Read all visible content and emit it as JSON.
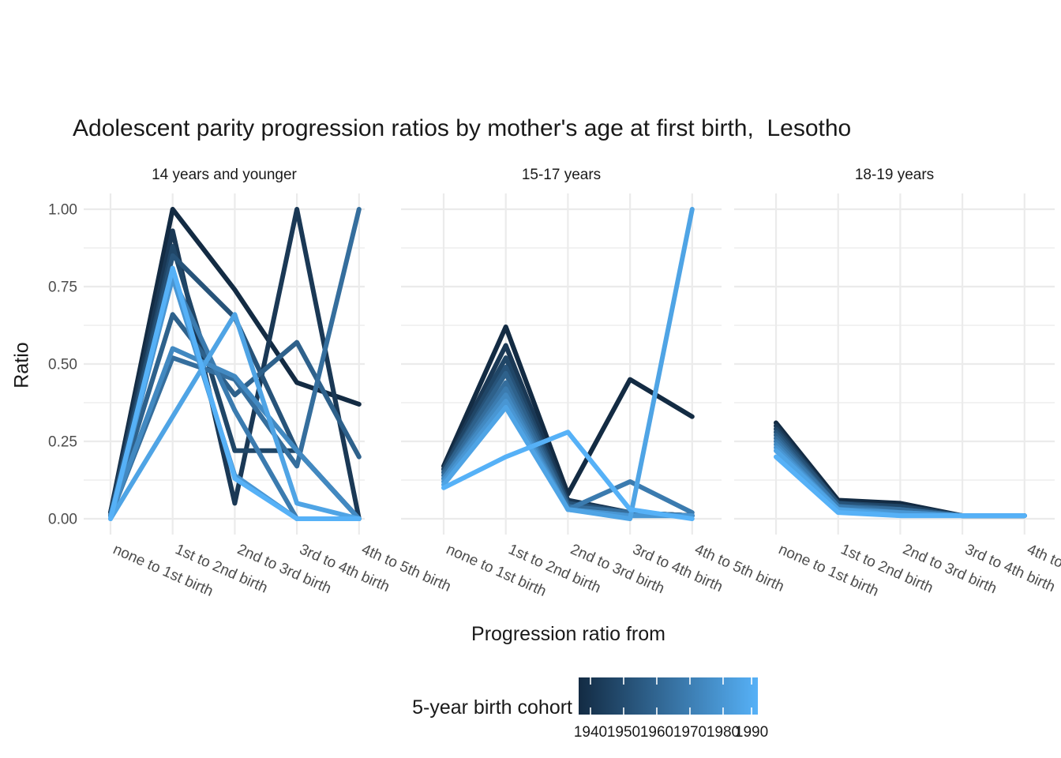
{
  "title": "Adolescent parity progression ratios by mother's age at first birth,  Lesotho",
  "y_axis": {
    "label": "Ratio",
    "ticks": [
      "1.00",
      "0.75",
      "0.50",
      "0.25",
      "0.00"
    ],
    "tick_values": [
      1.0,
      0.75,
      0.5,
      0.25,
      0.0
    ]
  },
  "x_axis": {
    "label": "Progression ratio from",
    "categories": [
      "none to 1st birth",
      "1st to 2nd birth",
      "2nd to 3rd birth",
      "3rd to 4th birth",
      "4th to 5th birth"
    ]
  },
  "legend": {
    "title": "5-year birth cohort",
    "ticks": [
      "1940",
      "1950",
      "1960",
      "1970",
      "1980",
      "1990"
    ],
    "gradient_low": "#132B43",
    "gradient_mid": "#356E9D",
    "gradient_high": "#56B1F7"
  },
  "chart_data": {
    "type": "line",
    "grid": true,
    "legend_position": "bottom",
    "ylim": [
      0,
      1
    ],
    "x": [
      "none to 1st birth",
      "1st to 2nd birth",
      "2nd to 3rd birth",
      "3rd to 4th birth",
      "4th to 5th birth"
    ],
    "facets": [
      {
        "label": "14 years and younger",
        "series": [
          {
            "name": "1940",
            "color": "#132B43",
            "values": [
              0.02,
              1.0,
              0.74,
              0.44,
              0.37
            ]
          },
          {
            "name": "1945",
            "color": "#1A3855",
            "values": [
              0.02,
              0.93,
              0.05,
              1.0,
              0.0
            ]
          },
          {
            "name": "1950",
            "color": "#204667",
            "values": [
              0.01,
              0.88,
              0.22,
              0.22,
              0.0
            ]
          },
          {
            "name": "1955",
            "color": "#275379",
            "values": [
              0.01,
              0.85,
              0.65,
              0.22,
              0.0
            ]
          },
          {
            "name": "1960",
            "color": "#2E618B",
            "values": [
              0.01,
              0.66,
              0.4,
              0.57,
              0.2
            ]
          },
          {
            "name": "1965",
            "color": "#356E9D",
            "values": [
              0.01,
              0.52,
              0.45,
              0.17,
              1.0
            ]
          },
          {
            "name": "1970",
            "color": "#3B7BAF",
            "values": [
              0.01,
              0.78,
              0.35,
              0.0,
              0.0
            ]
          },
          {
            "name": "1975",
            "color": "#4289C1",
            "values": [
              0.01,
              0.55,
              0.46,
              0.22,
              0.0
            ]
          },
          {
            "name": "1980",
            "color": "#4996D3",
            "values": [
              0.0,
              0.78,
              0.14,
              0.0,
              0.0
            ]
          },
          {
            "name": "1985",
            "color": "#4FA4E5",
            "values": [
              0.0,
              0.33,
              0.66,
              0.05,
              0.0
            ]
          },
          {
            "name": "1990",
            "color": "#56B1F7",
            "values": [
              0.0,
              0.81,
              0.13,
              0.0,
              0.0
            ]
          }
        ]
      },
      {
        "label": "15-17 years",
        "series": [
          {
            "name": "1940",
            "color": "#132B43",
            "values": [
              0.17,
              0.62,
              0.08,
              0.45,
              0.33
            ]
          },
          {
            "name": "1945",
            "color": "#1A3855",
            "values": [
              0.16,
              0.56,
              0.06,
              0.02,
              0.01
            ]
          },
          {
            "name": "1950",
            "color": "#204667",
            "values": [
              0.16,
              0.52,
              0.05,
              0.02,
              0.01
            ]
          },
          {
            "name": "1955",
            "color": "#275379",
            "values": [
              0.15,
              0.49,
              0.05,
              0.02,
              0.01
            ]
          },
          {
            "name": "1960",
            "color": "#2E618B",
            "values": [
              0.15,
              0.47,
              0.04,
              0.02,
              0.01
            ]
          },
          {
            "name": "1965",
            "color": "#356E9D",
            "values": [
              0.14,
              0.44,
              0.04,
              0.02,
              0.01
            ]
          },
          {
            "name": "1970",
            "color": "#3B7BAF",
            "values": [
              0.13,
              0.42,
              0.03,
              0.12,
              0.02
            ]
          },
          {
            "name": "1975",
            "color": "#4289C1",
            "values": [
              0.13,
              0.4,
              0.03,
              0.01,
              0.01
            ]
          },
          {
            "name": "1980",
            "color": "#4996D3",
            "values": [
              0.12,
              0.38,
              0.03,
              0.01,
              0.01
            ]
          },
          {
            "name": "1985",
            "color": "#4FA4E5",
            "values": [
              0.11,
              0.36,
              0.03,
              0.0,
              1.0
            ]
          },
          {
            "name": "1990",
            "color": "#56B1F7",
            "values": [
              0.1,
              0.2,
              0.28,
              0.03,
              0.0
            ]
          }
        ]
      },
      {
        "label": "18-19 years",
        "series": [
          {
            "name": "1940",
            "color": "#132B43",
            "values": [
              0.31,
              0.06,
              0.05,
              0.01,
              0.01
            ]
          },
          {
            "name": "1945",
            "color": "#1A3855",
            "values": [
              0.3,
              0.05,
              0.04,
              0.01,
              0.01
            ]
          },
          {
            "name": "1950",
            "color": "#204667",
            "values": [
              0.29,
              0.05,
              0.04,
              0.01,
              0.01
            ]
          },
          {
            "name": "1955",
            "color": "#275379",
            "values": [
              0.28,
              0.05,
              0.03,
              0.01,
              0.01
            ]
          },
          {
            "name": "1960",
            "color": "#2E618B",
            "values": [
              0.27,
              0.04,
              0.03,
              0.01,
              0.01
            ]
          },
          {
            "name": "1965",
            "color": "#356E9D",
            "values": [
              0.26,
              0.04,
              0.03,
              0.01,
              0.01
            ]
          },
          {
            "name": "1970",
            "color": "#3B7BAF",
            "values": [
              0.25,
              0.04,
              0.02,
              0.01,
              0.01
            ]
          },
          {
            "name": "1975",
            "color": "#4289C1",
            "values": [
              0.24,
              0.03,
              0.02,
              0.01,
              0.01
            ]
          },
          {
            "name": "1980",
            "color": "#4996D3",
            "values": [
              0.23,
              0.03,
              0.02,
              0.01,
              0.01
            ]
          },
          {
            "name": "1985",
            "color": "#4FA4E5",
            "values": [
              0.22,
              0.03,
              0.01,
              0.01,
              0.01
            ]
          },
          {
            "name": "1990",
            "color": "#56B1F7",
            "values": [
              0.2,
              0.02,
              0.01,
              0.01,
              0.01
            ]
          }
        ]
      }
    ]
  }
}
